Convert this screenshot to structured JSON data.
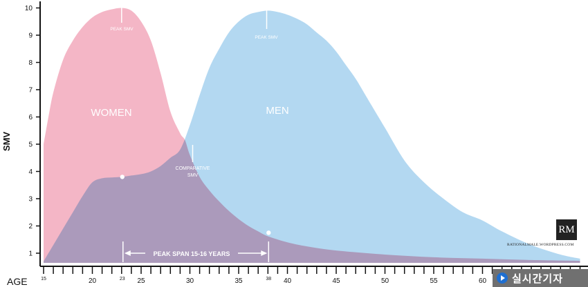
{
  "chart_data": {
    "type": "area",
    "ylabel": "SMV",
    "xlabel": "AGE",
    "xlim": [
      15,
      70
    ],
    "ylim": [
      0.5,
      10
    ],
    "x_ticks": [
      15,
      20,
      23,
      25,
      30,
      35,
      38,
      40,
      45,
      50,
      55,
      60
    ],
    "y_ticks": [
      1,
      2,
      3,
      4,
      5,
      6,
      7,
      8,
      9,
      10
    ],
    "series": [
      {
        "name": "WOMEN",
        "color": "#f4b6c6",
        "x": [
          15,
          15.5,
          16,
          17,
          18,
          19,
          20,
          21,
          22,
          23,
          24,
          25,
          26,
          27,
          28,
          29,
          29.5,
          30,
          31,
          32,
          33,
          34,
          35,
          36,
          37,
          38,
          40,
          42,
          45,
          50,
          55,
          60,
          65,
          70
        ],
        "values": [
          5.0,
          6.0,
          6.9,
          8.1,
          8.8,
          9.3,
          9.65,
          9.85,
          9.95,
          10.0,
          9.9,
          9.5,
          8.8,
          7.6,
          6.2,
          5.4,
          5.15,
          4.6,
          3.8,
          3.3,
          2.9,
          2.55,
          2.25,
          2.0,
          1.8,
          1.62,
          1.4,
          1.25,
          1.1,
          0.95,
          0.85,
          0.8,
          0.75,
          0.72
        ]
      },
      {
        "name": "MEN",
        "color": "#a9d3ef",
        "x": [
          15,
          16,
          17,
          18,
          19,
          20,
          21,
          22,
          23,
          24,
          25,
          26,
          27,
          28,
          29,
          30,
          31,
          32,
          33,
          34,
          35,
          36,
          37,
          38,
          39,
          40,
          41,
          42,
          43,
          44,
          45,
          46,
          47,
          48,
          50,
          52,
          54,
          56,
          58,
          60,
          62,
          65,
          68,
          70
        ],
        "values": [
          0.7,
          1.3,
          1.9,
          2.5,
          3.1,
          3.6,
          3.75,
          3.78,
          3.8,
          3.85,
          3.9,
          4.0,
          4.2,
          4.5,
          4.8,
          5.7,
          6.8,
          7.8,
          8.5,
          9.1,
          9.5,
          9.75,
          9.85,
          9.9,
          9.85,
          9.75,
          9.6,
          9.4,
          9.1,
          8.8,
          8.4,
          7.9,
          7.4,
          6.8,
          5.6,
          4.4,
          3.6,
          3.0,
          2.5,
          2.2,
          1.8,
          1.3,
          0.95,
          0.8
        ]
      }
    ],
    "annotations": {
      "women_label": "WOMEN",
      "men_label": "MEN",
      "women_peak": "PEAK SMV",
      "men_peak": "PEAK SMV",
      "comparative_line1": "COMPARATIVE",
      "comparative_line2": "SMV",
      "peak_span": "PEAK SPAN 15-16 YEARS"
    },
    "markers": [
      {
        "x": 23,
        "y": 3.8
      },
      {
        "x": 38,
        "y": 1.75
      }
    ],
    "comparative_x": 30,
    "span": [
      23,
      38
    ]
  },
  "branding": {
    "logo_text": "RM",
    "source_text": "RATIONALMALE.WORDPRESS.COM",
    "badge_text": "실시간기자"
  }
}
